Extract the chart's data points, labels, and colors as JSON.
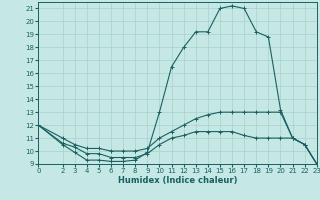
{
  "xlabel": "Humidex (Indice chaleur)",
  "background_color": "#c5e8e5",
  "grid_color": "#a8d0cc",
  "line_color": "#1a6060",
  "xlim": [
    0,
    23
  ],
  "ylim": [
    9,
    21.5
  ],
  "xticks": [
    0,
    2,
    3,
    4,
    5,
    6,
    7,
    8,
    9,
    10,
    11,
    12,
    13,
    14,
    15,
    16,
    17,
    18,
    19,
    20,
    21,
    22,
    23
  ],
  "yticks": [
    9,
    10,
    11,
    12,
    13,
    14,
    15,
    16,
    17,
    18,
    19,
    20,
    21
  ],
  "series": [
    {
      "x": [
        0,
        2,
        3,
        4,
        5,
        6,
        7,
        8,
        9,
        10,
        11,
        12,
        13,
        14,
        15,
        16,
        17,
        18,
        19,
        20,
        21,
        22,
        23
      ],
      "y": [
        12.0,
        10.5,
        9.9,
        9.3,
        9.3,
        9.2,
        9.2,
        9.3,
        9.9,
        13.0,
        16.5,
        18.0,
        19.2,
        19.2,
        21.0,
        21.2,
        21.0,
        19.2,
        18.8,
        13.2,
        11.0,
        10.5,
        9.0
      ]
    },
    {
      "x": [
        0,
        2,
        3,
        4,
        5,
        6,
        7,
        8,
        9,
        10,
        11,
        12,
        13,
        14,
        15,
        16,
        17,
        18,
        19,
        20,
        21,
        22,
        23
      ],
      "y": [
        12.0,
        11.0,
        10.5,
        10.2,
        10.2,
        10.0,
        10.0,
        10.0,
        10.2,
        11.0,
        11.5,
        12.0,
        12.5,
        12.8,
        13.0,
        13.0,
        13.0,
        13.0,
        13.0,
        13.0,
        11.0,
        10.5,
        9.0
      ]
    },
    {
      "x": [
        0,
        2,
        3,
        4,
        5,
        6,
        7,
        8,
        9,
        10,
        11,
        12,
        13,
        14,
        15,
        16,
        17,
        18,
        19,
        20,
        21,
        22,
        23
      ],
      "y": [
        12.0,
        10.6,
        10.3,
        9.8,
        9.8,
        9.5,
        9.5,
        9.5,
        9.8,
        10.5,
        11.0,
        11.2,
        11.5,
        11.5,
        11.5,
        11.5,
        11.2,
        11.0,
        11.0,
        11.0,
        11.0,
        10.5,
        9.0
      ]
    }
  ]
}
